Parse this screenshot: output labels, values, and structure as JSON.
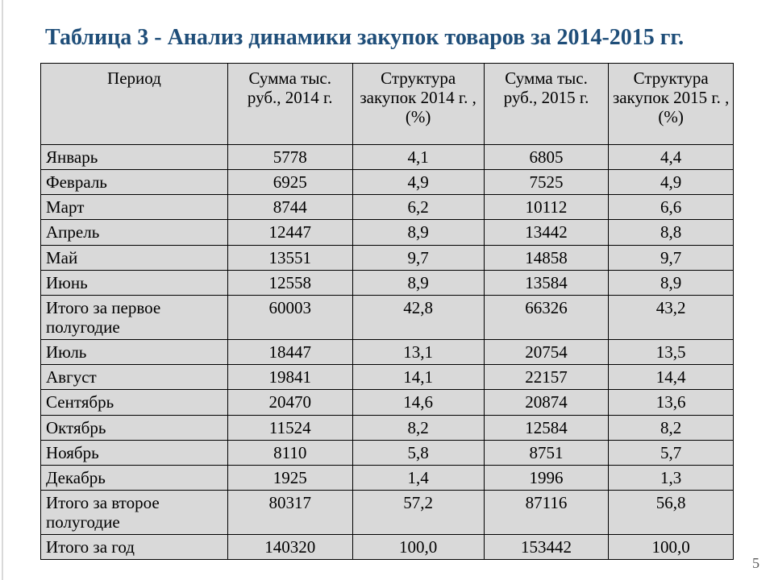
{
  "title": "Таблица 3 - Анализ динамики закупок товаров за 2014-2015 гг.",
  "page_number": "5",
  "table": {
    "background_color": "#d9d9d9",
    "border_color": "#000000",
    "title_color": "#1f4e79",
    "font_family": "Times New Roman",
    "header_fontsize": 21,
    "cell_fontsize": 21,
    "column_widths_pct": [
      27,
      18,
      19,
      18,
      18
    ],
    "columns": [
      "Период",
      "Сумма тыс. руб., 2014 г.",
      "Структура закупок 2014 г. ,(%)",
      "Сумма тыс. руб., 2015 г.",
      "Структура закупок 2015 г. ,(%)"
    ],
    "rows": [
      [
        "Январь",
        "5778",
        "4,1",
        "6805",
        "4,4"
      ],
      [
        "Февраль",
        "6925",
        "4,9",
        "7525",
        "4,9"
      ],
      [
        "Март",
        "8744",
        "6,2",
        "10112",
        "6,6"
      ],
      [
        "Апрель",
        "12447",
        "8,9",
        "13442",
        "8,8"
      ],
      [
        "Май",
        "13551",
        "9,7",
        "14858",
        "9,7"
      ],
      [
        "Июнь",
        "12558",
        "8,9",
        "13584",
        "8,9"
      ],
      [
        "Итого за первое полугодие",
        "60003",
        "42,8",
        "66326",
        "43,2"
      ],
      [
        "Июль",
        "18447",
        "13,1",
        "20754",
        "13,5"
      ],
      [
        "Август",
        "19841",
        "14,1",
        "22157",
        "14,4"
      ],
      [
        "Сентябрь",
        "20470",
        "14,6",
        "20874",
        "13,6"
      ],
      [
        "Октябрь",
        "11524",
        "8,2",
        "12584",
        "8,2"
      ],
      [
        "Ноябрь",
        "8110",
        "5,8",
        "8751",
        "5,7"
      ],
      [
        "Декабрь",
        "1925",
        "1,4",
        "1996",
        "1,3"
      ],
      [
        "Итого за второе полугодие",
        "80317",
        "57,2",
        "87116",
        "56,8"
      ],
      [
        "Итого за год",
        "140320",
        "100,0",
        "153442",
        "100,0"
      ]
    ]
  }
}
